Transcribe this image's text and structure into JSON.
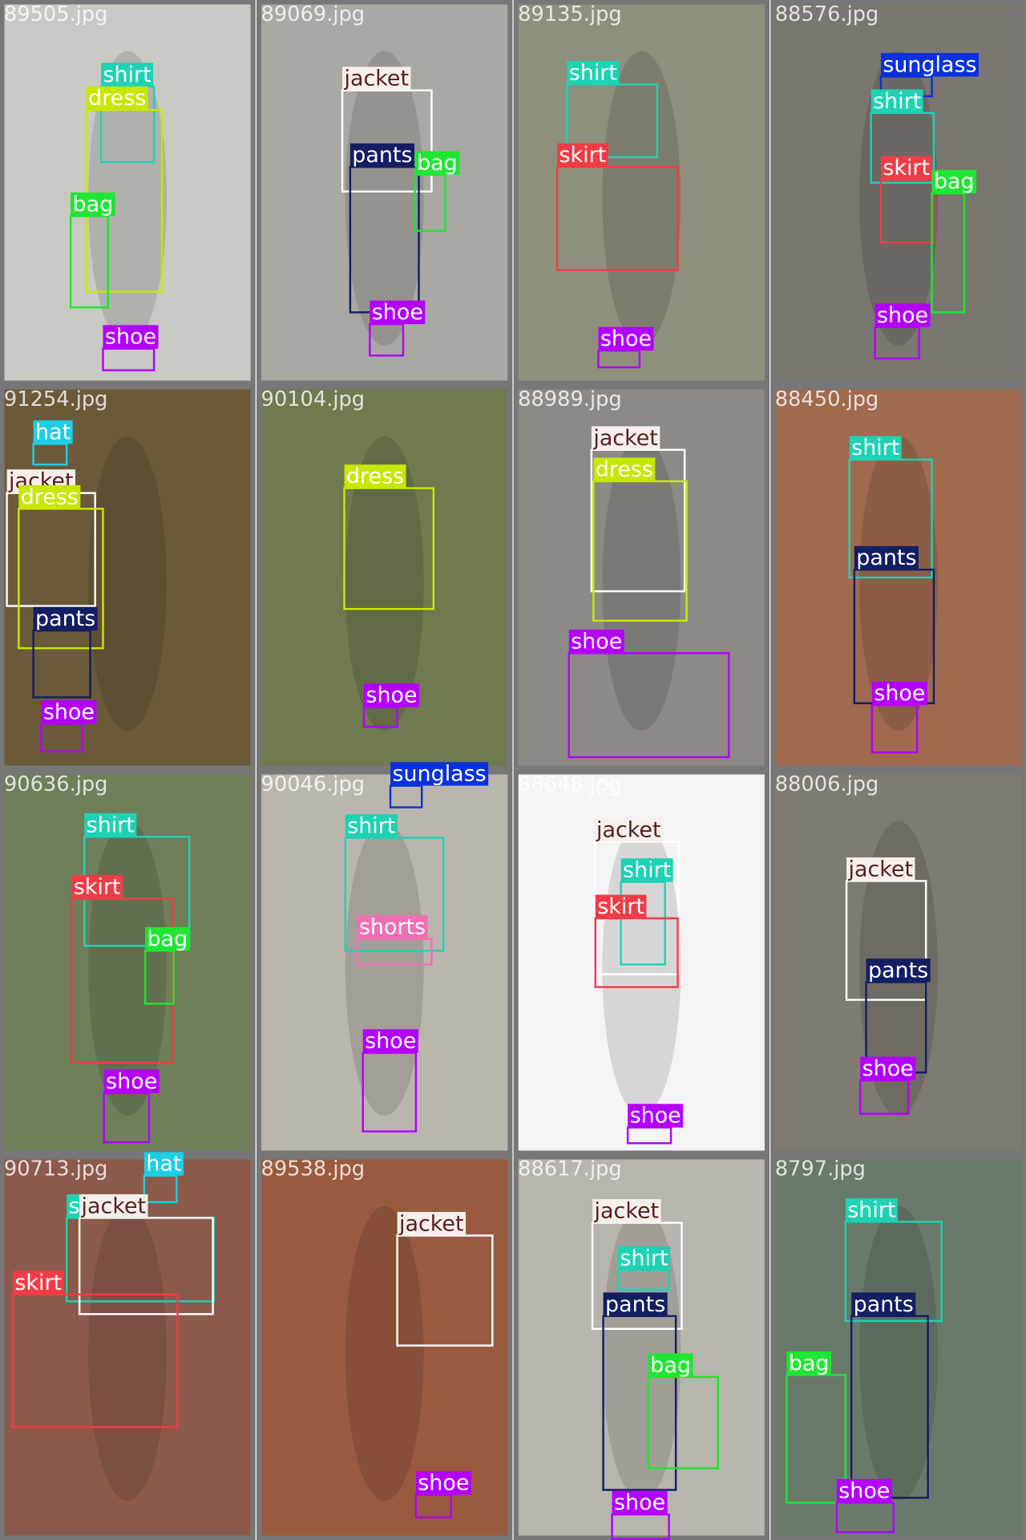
{
  "tiles": [
    {
      "filename": "89505.jpg",
      "detections": [
        "shirt",
        "dress",
        "bag",
        "shoe"
      ]
    },
    {
      "filename": "89069.jpg",
      "detections": [
        "jacket",
        "pants",
        "bag",
        "shoe"
      ]
    },
    {
      "filename": "89135.jpg",
      "detections": [
        "shirt",
        "skirt",
        "shoe"
      ]
    },
    {
      "filename": "88576.jpg",
      "detections": [
        "sunglass",
        "shirt",
        "skirt",
        "bag",
        "shoe"
      ]
    },
    {
      "filename": "91254.jpg",
      "detections": [
        "hat",
        "jacket",
        "dress",
        "pants",
        "shoe"
      ]
    },
    {
      "filename": "90104.jpg",
      "detections": [
        "dress",
        "shoe"
      ]
    },
    {
      "filename": "88989.jpg",
      "detections": [
        "jacket",
        "dress",
        "shoe"
      ]
    },
    {
      "filename": "88450.jpg",
      "detections": [
        "shirt",
        "pants",
        "shoe"
      ]
    },
    {
      "filename": "90636.jpg",
      "detections": [
        "shirt",
        "skirt",
        "bag",
        "shoe"
      ]
    },
    {
      "filename": "90046.jpg",
      "detections": [
        "sunglass",
        "shirt",
        "shorts",
        "shoe"
      ]
    },
    {
      "filename": "88648.jpg",
      "detections": [
        "jacket",
        "shirt",
        "skirt",
        "shoe"
      ]
    },
    {
      "filename": "88006.jpg",
      "detections": [
        "jacket",
        "pants",
        "shoe"
      ]
    },
    {
      "filename": "90713.jpg",
      "detections": [
        "hat",
        "shirt",
        "jacket",
        "skirt"
      ]
    },
    {
      "filename": "89538.jpg",
      "detections": [
        "jacket",
        "shoe"
      ]
    },
    {
      "filename": "88617.jpg",
      "detections": [
        "jacket",
        "shirt",
        "pants",
        "bag",
        "shoe"
      ]
    },
    {
      "filename": "8797.jpg",
      "detections": [
        "shirt",
        "pants",
        "bag",
        "shoe"
      ]
    }
  ]
}
